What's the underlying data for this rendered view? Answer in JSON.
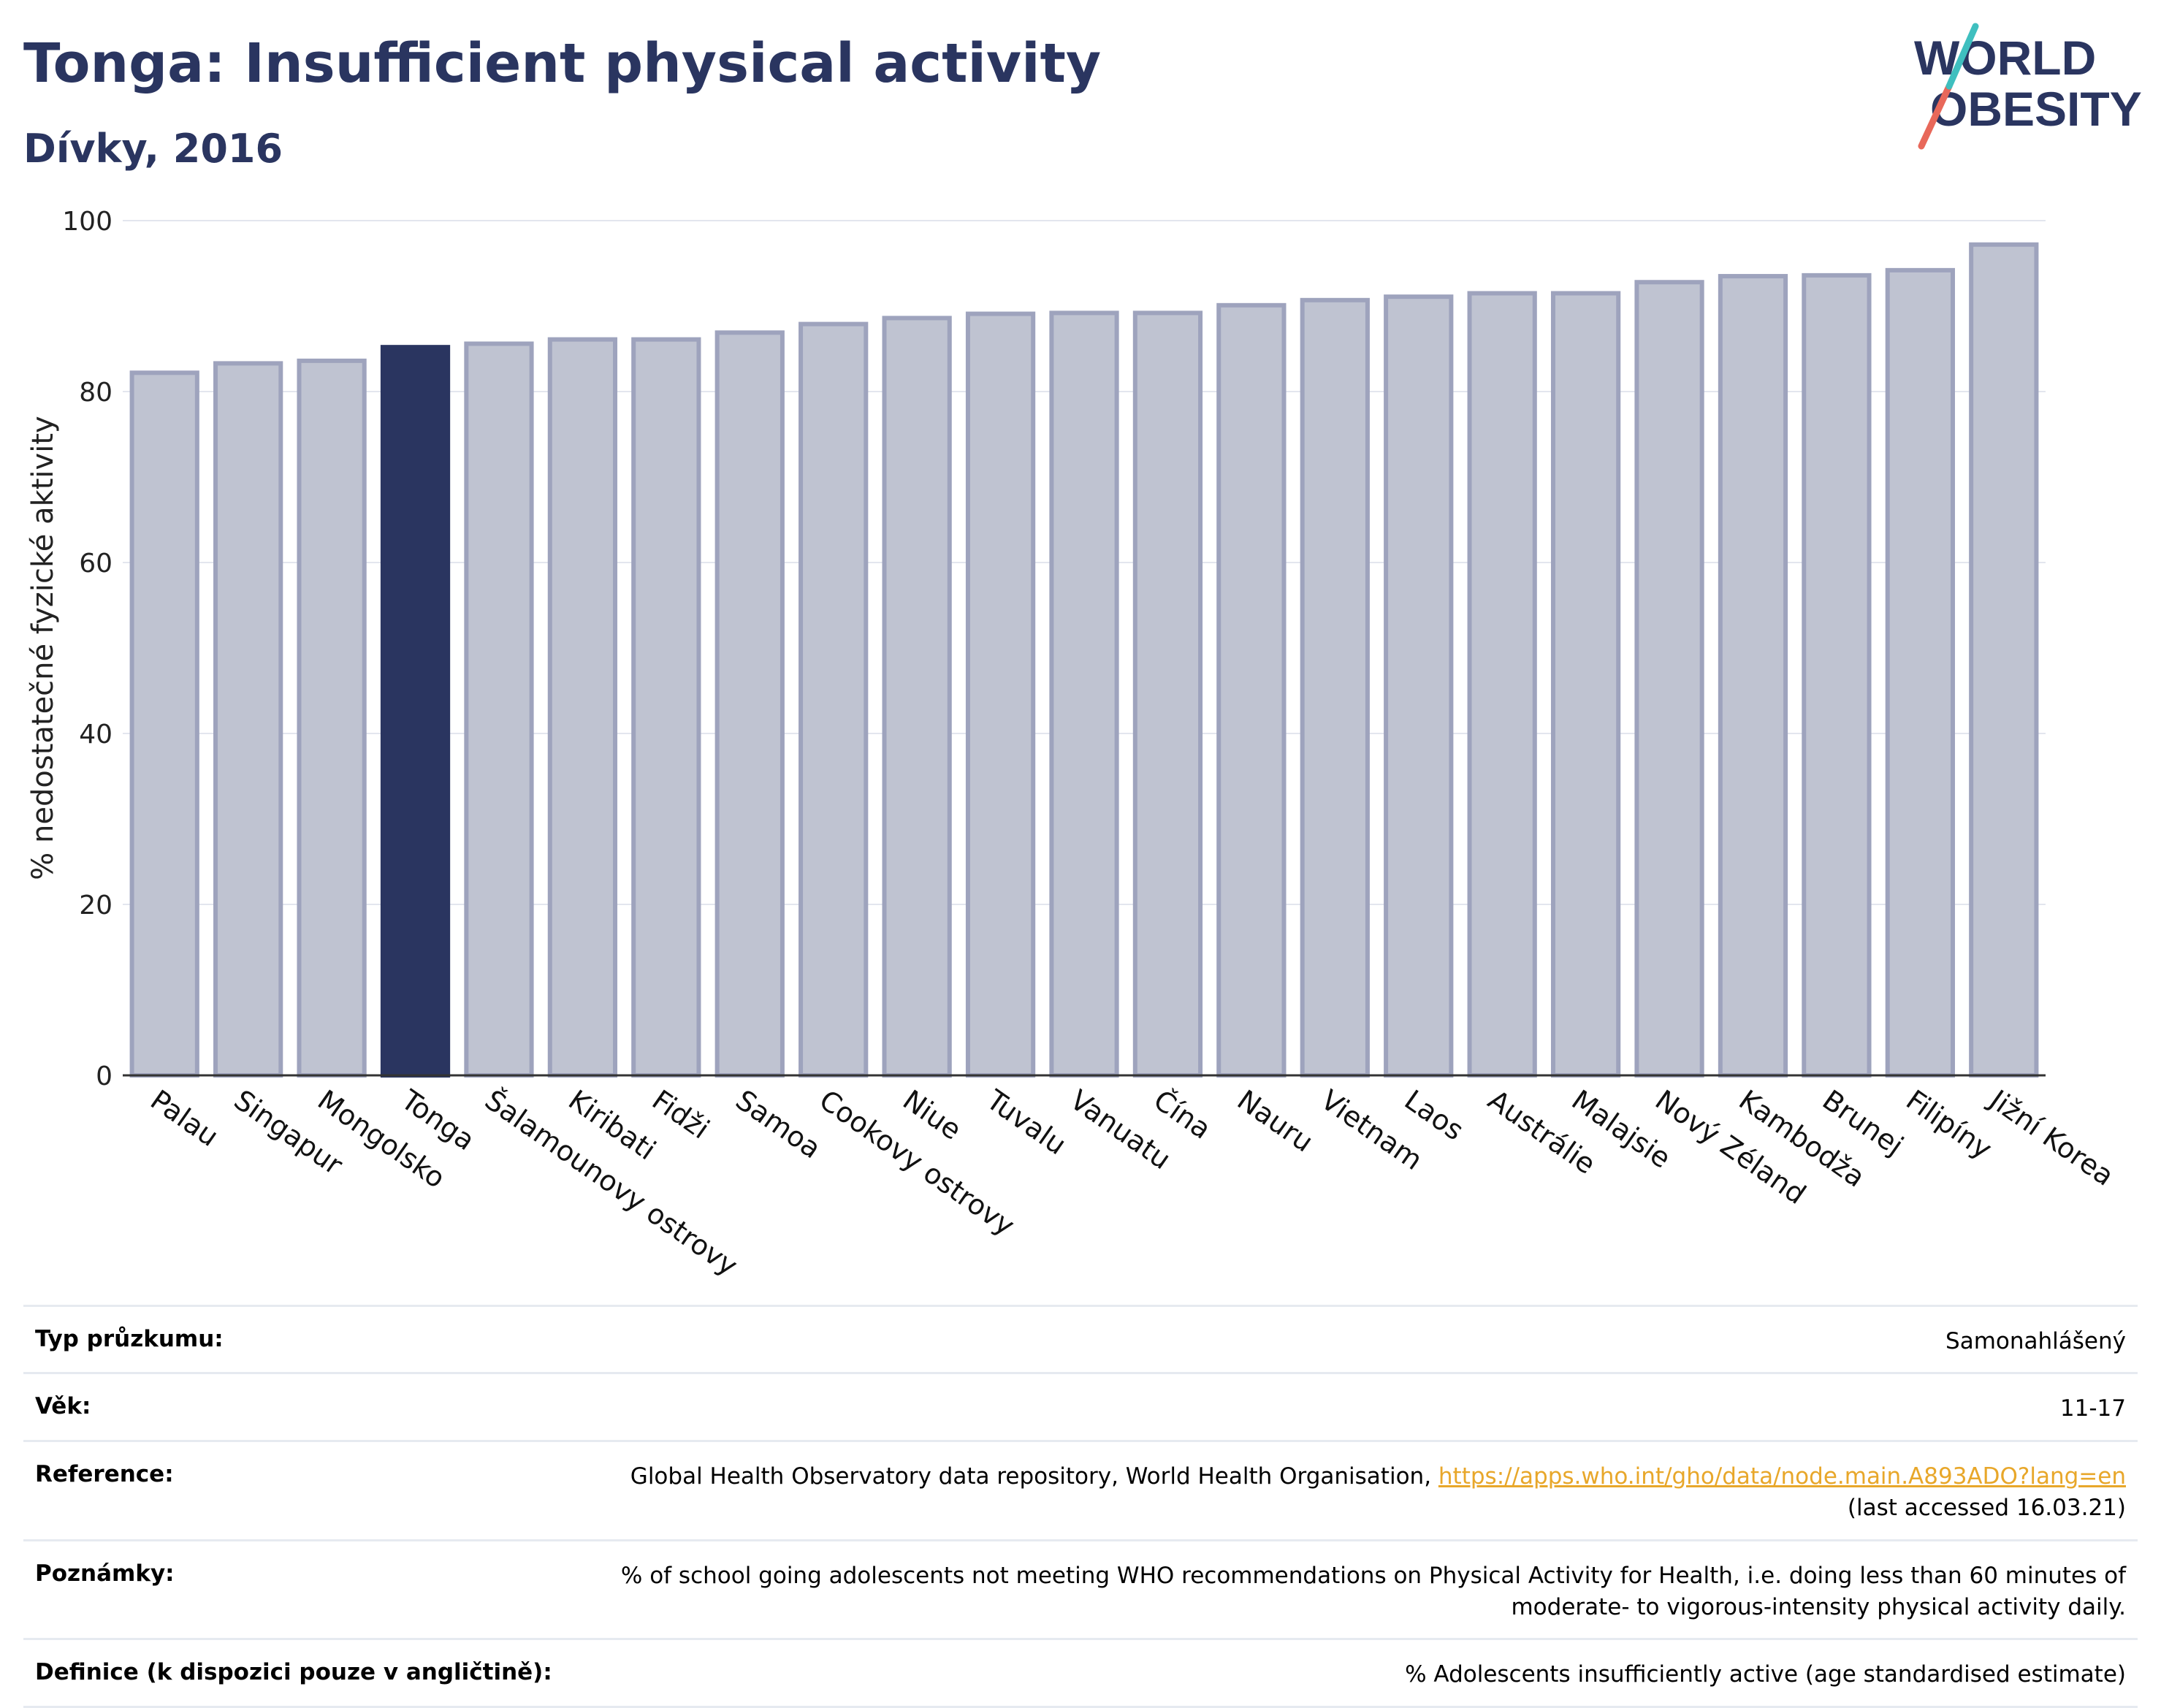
{
  "header": {
    "title": "Tonga: Insufficient physical activity",
    "subtitle": "Dívky, 2016",
    "logo_line1": "WORLD",
    "logo_line2": "OBESITY"
  },
  "colors": {
    "highlight": "#2a3560",
    "bar": "#bfc3d1",
    "bar_border": "#9ea3bd",
    "title": "#2a3560",
    "link": "#e8a72a"
  },
  "chart_data": {
    "type": "bar",
    "title": "",
    "xlabel": "",
    "ylabel": "% nedostatečné fyzické aktivity",
    "ylim": [
      0,
      100
    ],
    "yticks": [
      0,
      20,
      40,
      60,
      80,
      100
    ],
    "highlight": "Tonga",
    "categories": [
      "Palau",
      "Singapur",
      "Mongolsko",
      "Tonga",
      "Šalamounovy ostrovy",
      "Kiribati",
      "Fidži",
      "Samoa",
      "Cookovy ostrovy",
      "Niue",
      "Tuvalu",
      "Vanuatu",
      "Čína",
      "Nauru",
      "Vietnam",
      "Laos",
      "Austrálie",
      "Malajsie",
      "Nový Zéland",
      "Kambodža",
      "Brunej",
      "Filipíny",
      "Jižní Korea"
    ],
    "values": [
      82.2,
      83.3,
      83.6,
      85.2,
      85.6,
      86.1,
      86.1,
      86.9,
      87.9,
      88.6,
      89.1,
      89.2,
      89.2,
      90.1,
      90.7,
      91.1,
      91.5,
      91.5,
      92.8,
      93.5,
      93.6,
      94.2,
      97.2
    ],
    "grid": true
  },
  "info": [
    {
      "label": "Typ průzkumu:",
      "value": "Samonahlášený"
    },
    {
      "label": "Věk:",
      "value": "11-17"
    },
    {
      "label": "Reference:",
      "value": "Global Health Observatory data repository, World Health Organisation, ",
      "link": "https://apps.who.int/gho/data/node.main.A893ADO?lang=en",
      "value2": "(last accessed 16.03.21)"
    },
    {
      "label": "Poznámky:",
      "value": "% of school going adolescents not meeting WHO recommendations on Physical Activity for Health, i.e. doing less than 60 minutes of moderate- to vigorous-intensity physical activity daily."
    },
    {
      "label": "Definice (k dispozici pouze v angličtině):",
      "value": "% Adolescents insufficiently active (age standardised estimate)"
    }
  ]
}
